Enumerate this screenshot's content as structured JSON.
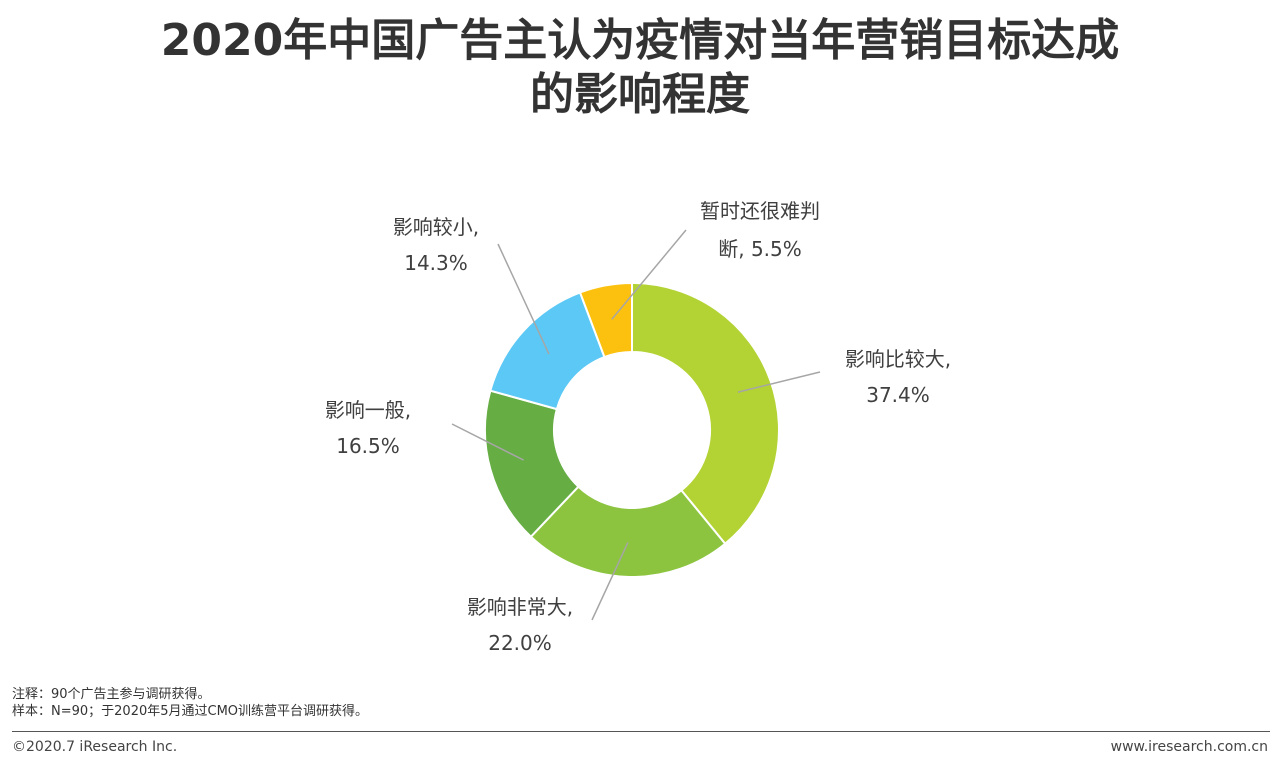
{
  "header": {
    "title_line1": "2020年中国广告主认为疫情对当年营销目标达成",
    "title_line2": "的影响程度"
  },
  "chart_data": {
    "type": "pie",
    "variant": "donut",
    "title": "2020年中国广告主认为疫情对当年营销目标达成的影响程度",
    "slices": [
      {
        "name": "影响比较大",
        "value": 37.4,
        "label_line1": "影响比较大,",
        "label_line2": "37.4%",
        "color": "#b3d334"
      },
      {
        "name": "影响非常大",
        "value": 22.0,
        "label_line1": "影响非常大,",
        "label_line2": "22.0%",
        "color": "#8cc43f"
      },
      {
        "name": "影响一般",
        "value": 16.5,
        "label_line1": "影响一般,",
        "label_line2": "16.5%",
        "color": "#66ad44"
      },
      {
        "name": "影响较小",
        "value": 14.3,
        "label_line1": "影响较小,",
        "label_line2": "14.3%",
        "color": "#5bc8f5"
      },
      {
        "name": "暂时还很难判断",
        "value": 5.5,
        "label_line1": "暂时还很难判",
        "label_line2": "断, 5.5%",
        "color": "#fcc10e"
      }
    ]
  },
  "notes": {
    "note": "注释：90个广告主参与调研获得。",
    "sample": "样本：N=90；于2020年5月通过CMO训练营平台调研获得。"
  },
  "footer": {
    "copyright": "©2020.7 iResearch Inc.",
    "website": "www.iresearch.com.cn"
  }
}
